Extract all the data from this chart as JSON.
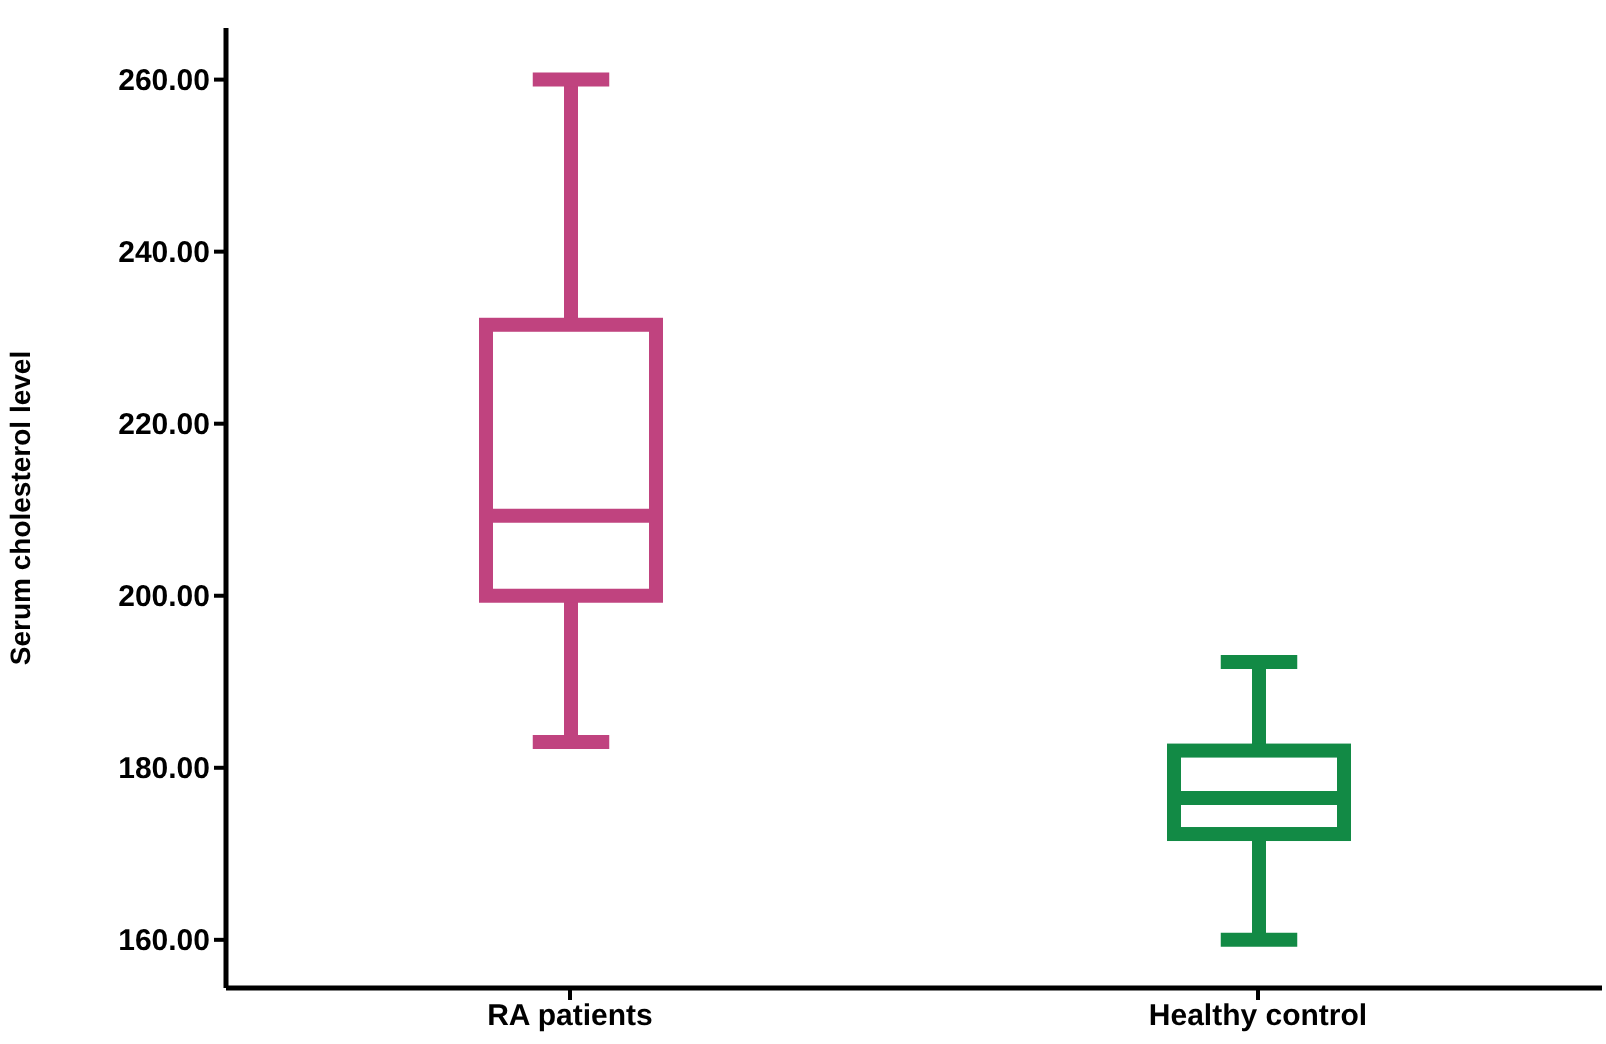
{
  "chart_data": {
    "type": "box",
    "ylabel": "Serum cholesterol level",
    "categories": [
      "RA patients",
      "Healthy control"
    ],
    "colors": [
      "#c0437f",
      "#128a45"
    ],
    "boxes": [
      {
        "low": 183,
        "q1": 200,
        "median": 209.3,
        "q3": 231.5,
        "high": 260
      },
      {
        "low": 160,
        "q1": 172.3,
        "median": 176.5,
        "q3": 182,
        "high": 192.3
      }
    ],
    "ylim": [
      154.4,
      266
    ],
    "yticks": [
      {
        "value": 160,
        "label": "160.00"
      },
      {
        "value": 180,
        "label": "180.00"
      },
      {
        "value": 200,
        "label": "200.00"
      },
      {
        "value": 220,
        "label": "220.00"
      },
      {
        "value": 240,
        "label": "240.00"
      },
      {
        "value": 260,
        "label": "260.00"
      }
    ]
  }
}
